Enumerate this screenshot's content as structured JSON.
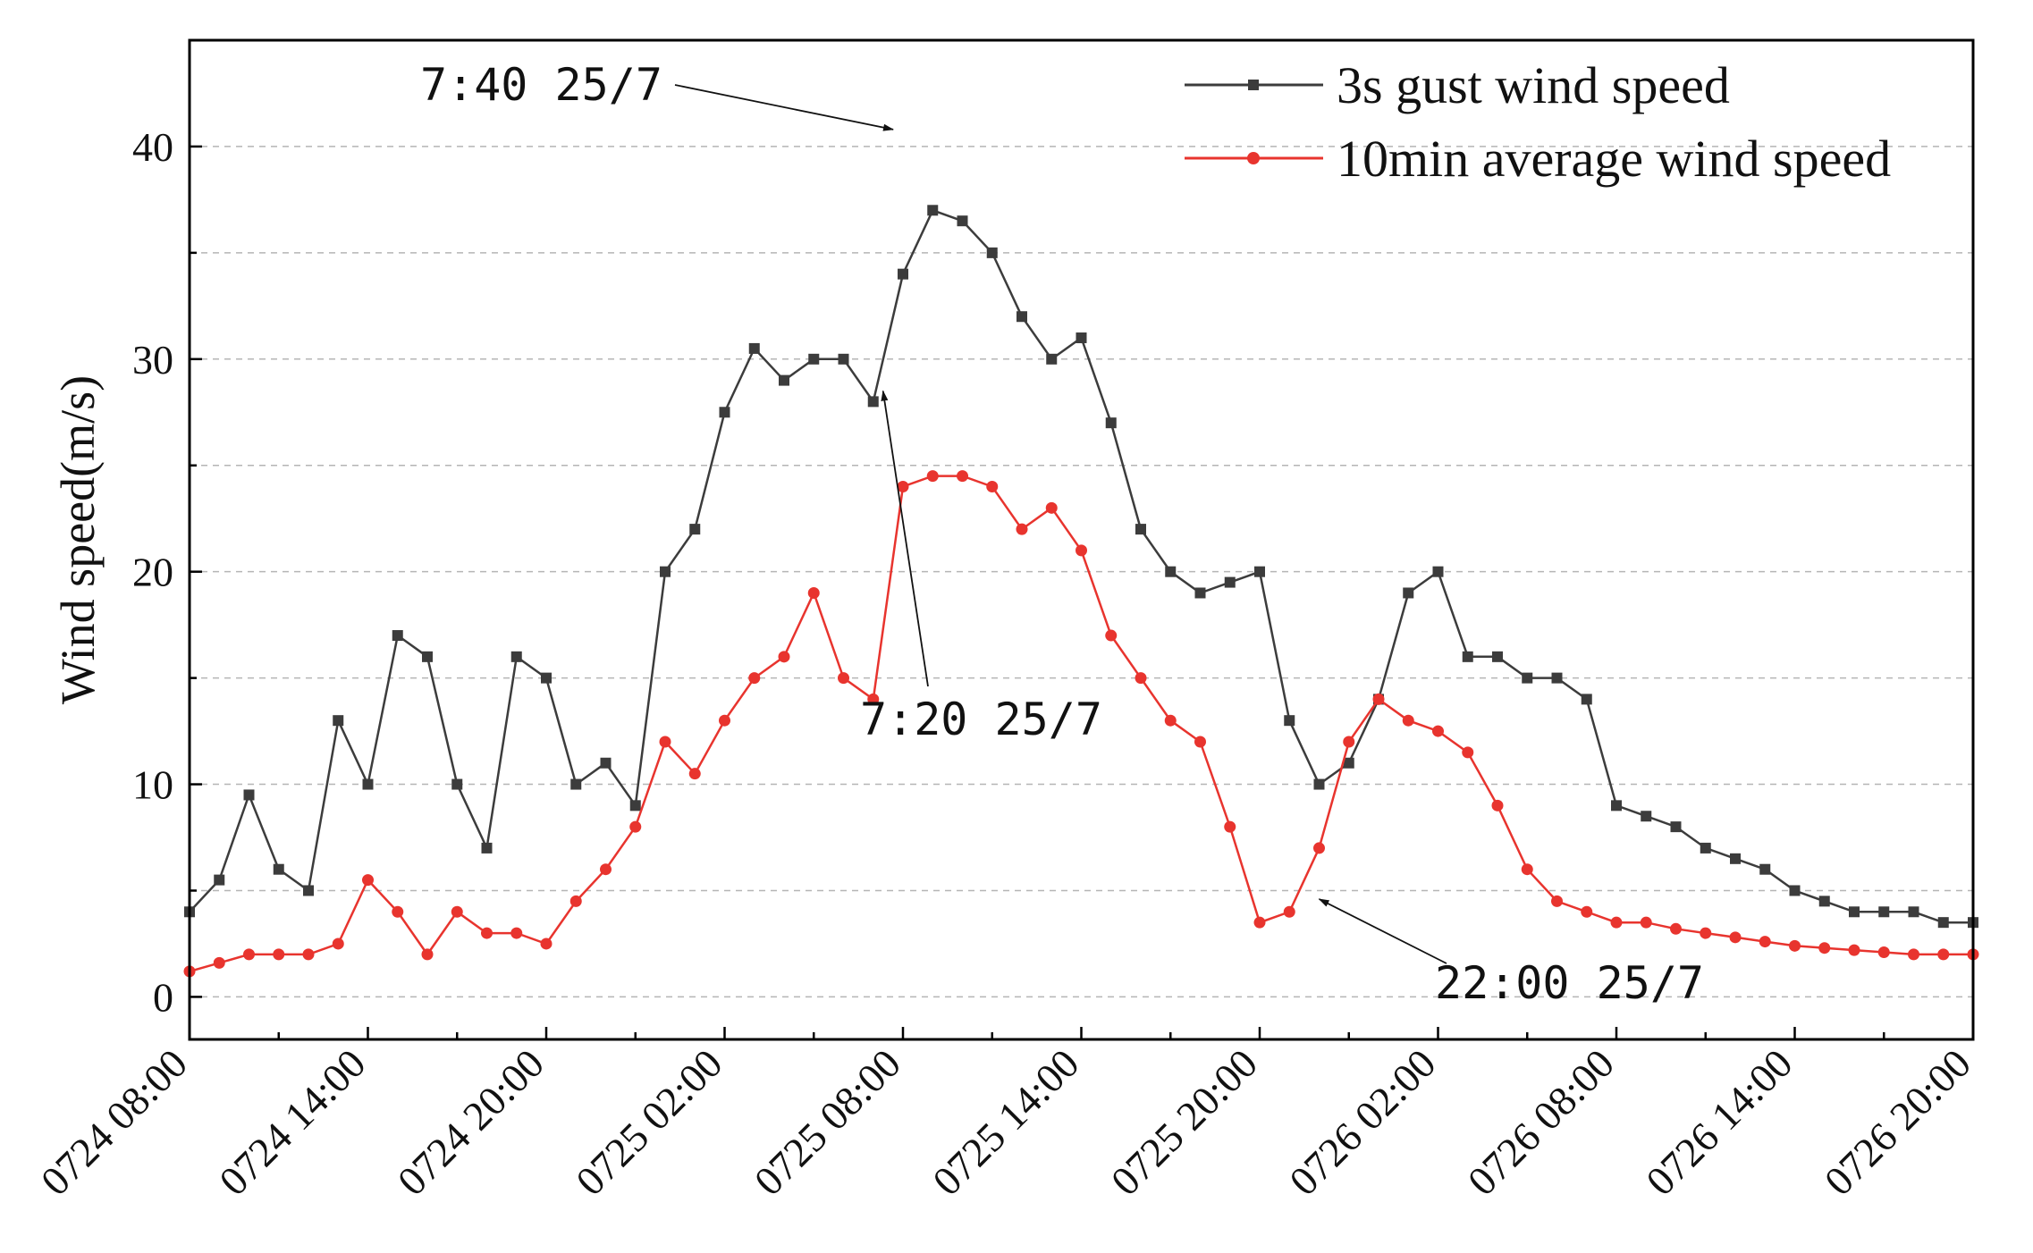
{
  "chart_data": {
    "type": "line",
    "title": "",
    "xlabel": "",
    "ylabel": "Wind speed(m/s)",
    "ylim": [
      -2,
      45
    ],
    "xlim_hours": [
      0,
      60
    ],
    "yticks": [
      0,
      10,
      20,
      30,
      40
    ],
    "grid": "dashed horizontal at every 5 m/s",
    "x_tick_hours": [
      0,
      6,
      12,
      18,
      24,
      30,
      36,
      42,
      48,
      54,
      60
    ],
    "x_tick_labels": [
      "0724 08:00",
      "0724 14:00",
      "0724 20:00",
      "0725 02:00",
      "0725 08:00",
      "0725 14:00",
      "0725 20:00",
      "0726 02:00",
      "0726 08:00",
      "0726 14:00",
      "0726 20:00"
    ],
    "x_unit": "hours since 0724 08:00",
    "legend_position": "top-right",
    "series": [
      {
        "name": "3s gust wind speed",
        "color": "#3c3c3c",
        "marker": "square",
        "x": [
          0,
          1,
          2,
          3,
          4,
          5,
          6,
          7,
          8,
          9,
          10,
          11,
          12,
          13,
          14,
          15,
          16,
          17,
          18,
          19,
          20,
          21,
          22,
          23,
          24,
          25,
          26,
          27,
          28,
          29,
          30,
          31,
          32,
          33,
          34,
          35,
          36,
          37,
          38,
          39,
          40,
          41,
          42,
          43,
          44,
          45,
          46,
          47,
          48,
          49,
          50,
          51,
          52,
          53,
          54,
          55,
          56,
          57,
          58,
          59,
          60
        ],
        "values": [
          4,
          5.5,
          9.5,
          6,
          5,
          13,
          10,
          17,
          16,
          10,
          7,
          16,
          15,
          10,
          11,
          9,
          20,
          22,
          27.5,
          30.5,
          29,
          30,
          30,
          28,
          34,
          37,
          36.5,
          35,
          32,
          30,
          31,
          27,
          22,
          20,
          19,
          19.5,
          20,
          13,
          10,
          11,
          14,
          19,
          20,
          16,
          16,
          15,
          15,
          14,
          9,
          8.5,
          8,
          7,
          6.5,
          6,
          5,
          4.5,
          4,
          4,
          4,
          3.5,
          3.5
        ]
      },
      {
        "name": "10min average wind speed",
        "color": "#e8342e",
        "marker": "circle",
        "x": [
          0,
          1,
          2,
          3,
          4,
          5,
          6,
          7,
          8,
          9,
          10,
          11,
          12,
          13,
          14,
          15,
          16,
          17,
          18,
          19,
          20,
          21,
          22,
          23,
          24,
          25,
          26,
          27,
          28,
          29,
          30,
          31,
          32,
          33,
          34,
          35,
          36,
          37,
          38,
          39,
          40,
          41,
          42,
          43,
          44,
          45,
          46,
          47,
          48,
          49,
          50,
          51,
          52,
          53,
          54,
          55,
          56,
          57,
          58,
          59,
          60
        ],
        "values": [
          1.2,
          1.6,
          2,
          2,
          2,
          2.5,
          5.5,
          4,
          2,
          4,
          3,
          3,
          2.5,
          4.5,
          6,
          8,
          12,
          10.5,
          13,
          15,
          16,
          19,
          15,
          14,
          24,
          24.5,
          24.5,
          24,
          22,
          23,
          21,
          17,
          15,
          13,
          12,
          8,
          3.5,
          4,
          7,
          12,
          14,
          13,
          12.5,
          11.5,
          9,
          6,
          4.5,
          4,
          3.5,
          3.5,
          3.2,
          3,
          2.8,
          2.6,
          2.4,
          2.3,
          2.2,
          2.1,
          2,
          2,
          2
        ]
      }
    ],
    "annotations": [
      {
        "text": "7:40 25/7",
        "x_hour": 23.67,
        "y": 40.8
      },
      {
        "text": "7:20 25/7",
        "x_hour": 23.33,
        "y": 28.5
      },
      {
        "text": "22:00 25/7",
        "x_hour": 38,
        "y": 4.6
      }
    ]
  }
}
